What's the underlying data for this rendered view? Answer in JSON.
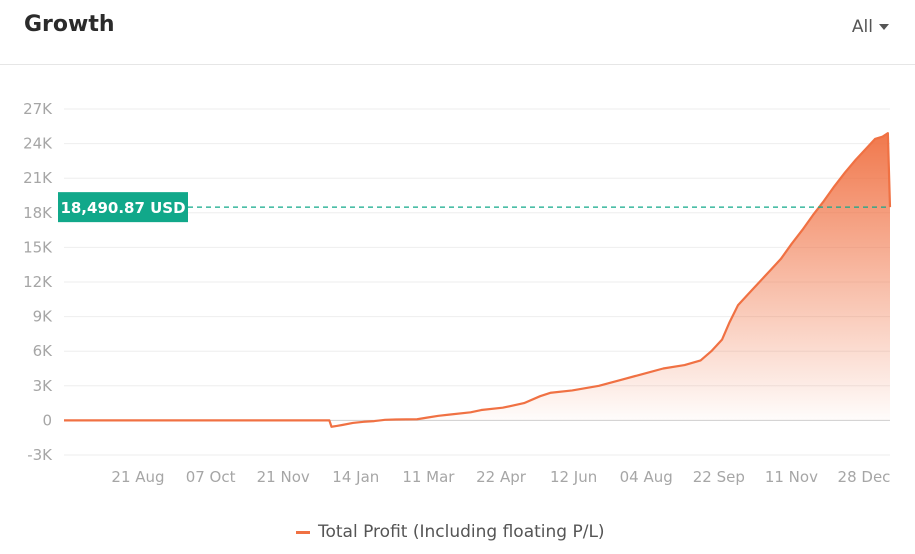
{
  "header": {
    "title": "Growth",
    "period_label": "All"
  },
  "colors": {
    "line": "#f07143",
    "marker": "#11a88a",
    "grid": "#eeeeee",
    "zero_line": "#cfcfcf",
    "tick": "#a6a6a6"
  },
  "chart_data": {
    "type": "area",
    "title": "Growth",
    "xlabel": "",
    "ylabel": "",
    "ylim": [
      -3000,
      27000
    ],
    "y_ticks": [
      {
        "value": 27000,
        "label": "27K"
      },
      {
        "value": 24000,
        "label": "24K"
      },
      {
        "value": 21000,
        "label": "21K"
      },
      {
        "value": 18000,
        "label": "18K"
      },
      {
        "value": 15000,
        "label": "15K"
      },
      {
        "value": 12000,
        "label": "12K"
      },
      {
        "value": 9000,
        "label": "9K"
      },
      {
        "value": 6000,
        "label": "6K"
      },
      {
        "value": 3000,
        "label": "3K"
      },
      {
        "value": 0,
        "label": "0"
      },
      {
        "value": -3000,
        "label": "-3K"
      }
    ],
    "x_tick_labels": [
      "21 Aug",
      "07 Oct",
      "21 Nov",
      "14 Jan",
      "11 Mar",
      "22 Apr",
      "12 Jun",
      "04 Aug",
      "22 Sep",
      "11 Nov",
      "28 Dec"
    ],
    "grid": true,
    "legend_position": "bottom",
    "marker": {
      "value": 18490.87,
      "label": "18,490.87 USD"
    },
    "series": [
      {
        "name": "Total Profit (Including floating P/L)",
        "points": [
          [
            0,
            0
          ],
          [
            2.2,
            0
          ],
          [
            2.48,
            0
          ],
          [
            2.5,
            -550
          ],
          [
            2.55,
            -480
          ],
          [
            2.6,
            -400
          ],
          [
            2.7,
            -220
          ],
          [
            2.8,
            -120
          ],
          [
            2.9,
            -60
          ],
          [
            3.0,
            50
          ],
          [
            3.1,
            80
          ],
          [
            3.3,
            100
          ],
          [
            3.4,
            250
          ],
          [
            3.5,
            400
          ],
          [
            3.6,
            500
          ],
          [
            3.8,
            700
          ],
          [
            3.9,
            900
          ],
          [
            4.1,
            1100
          ],
          [
            4.3,
            1500
          ],
          [
            4.45,
            2100
          ],
          [
            4.55,
            2400
          ],
          [
            4.75,
            2600
          ],
          [
            5.0,
            3000
          ],
          [
            5.2,
            3500
          ],
          [
            5.4,
            4000
          ],
          [
            5.6,
            4500
          ],
          [
            5.8,
            4800
          ],
          [
            5.95,
            5200
          ],
          [
            6.05,
            6000
          ],
          [
            6.15,
            7000
          ],
          [
            6.22,
            8500
          ],
          [
            6.3,
            10000
          ],
          [
            6.4,
            11000
          ],
          [
            6.5,
            12000
          ],
          [
            6.6,
            13000
          ],
          [
            6.7,
            14000
          ],
          [
            6.8,
            15300
          ],
          [
            6.9,
            16500
          ],
          [
            7.0,
            17800
          ],
          [
            7.1,
            19000
          ],
          [
            7.2,
            20300
          ],
          [
            7.3,
            21500
          ],
          [
            7.4,
            22600
          ],
          [
            7.5,
            23600
          ],
          [
            7.58,
            24400
          ],
          [
            7.65,
            24600
          ],
          [
            7.7,
            24900
          ],
          [
            7.72,
            18490.87
          ]
        ]
      }
    ]
  },
  "legend": {
    "label": "Total Profit (Including floating P/L)"
  }
}
